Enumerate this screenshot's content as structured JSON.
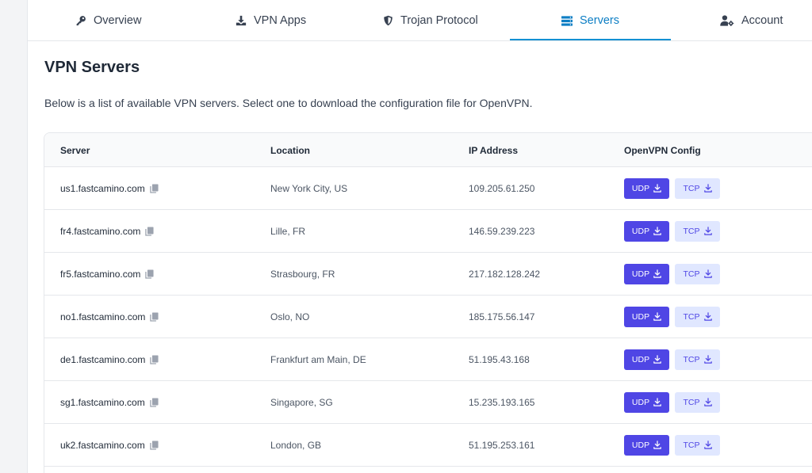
{
  "tabs": [
    {
      "label": "Overview",
      "icon": "key-icon"
    },
    {
      "label": "VPN Apps",
      "icon": "download-icon"
    },
    {
      "label": "Trojan Protocol",
      "icon": "shield-icon"
    },
    {
      "label": "Servers",
      "icon": "server-icon",
      "active": true
    },
    {
      "label": "Account",
      "icon": "user-gear-icon"
    }
  ],
  "page": {
    "title": "VPN Servers",
    "intro": "Below is a list of available VPN servers. Select one to download the configuration file for OpenVPN."
  },
  "table": {
    "headers": {
      "server": "Server",
      "location": "Location",
      "ip": "IP Address",
      "config": "OpenVPN Config"
    },
    "udp_label": "UDP",
    "tcp_label": "TCP",
    "rows": [
      {
        "server": "us1.fastcamino.com",
        "location": "New York City, US",
        "ip": "109.205.61.250"
      },
      {
        "server": "fr4.fastcamino.com",
        "location": "Lille, FR",
        "ip": "146.59.239.223"
      },
      {
        "server": "fr5.fastcamino.com",
        "location": "Strasbourg, FR",
        "ip": "217.182.128.242"
      },
      {
        "server": "no1.fastcamino.com",
        "location": "Oslo, NO",
        "ip": "185.175.56.147"
      },
      {
        "server": "de1.fastcamino.com",
        "location": "Frankfurt am Main, DE",
        "ip": "51.195.43.168"
      },
      {
        "server": "sg1.fastcamino.com",
        "location": "Singapore, SG",
        "ip": "15.235.193.165"
      },
      {
        "server": "uk2.fastcamino.com",
        "location": "London, GB",
        "ip": "51.195.253.161"
      }
    ]
  },
  "colors": {
    "accent": "#4f46e5",
    "active_tab": "#0d7ec4",
    "tcp_bg": "#e0e7ff"
  }
}
